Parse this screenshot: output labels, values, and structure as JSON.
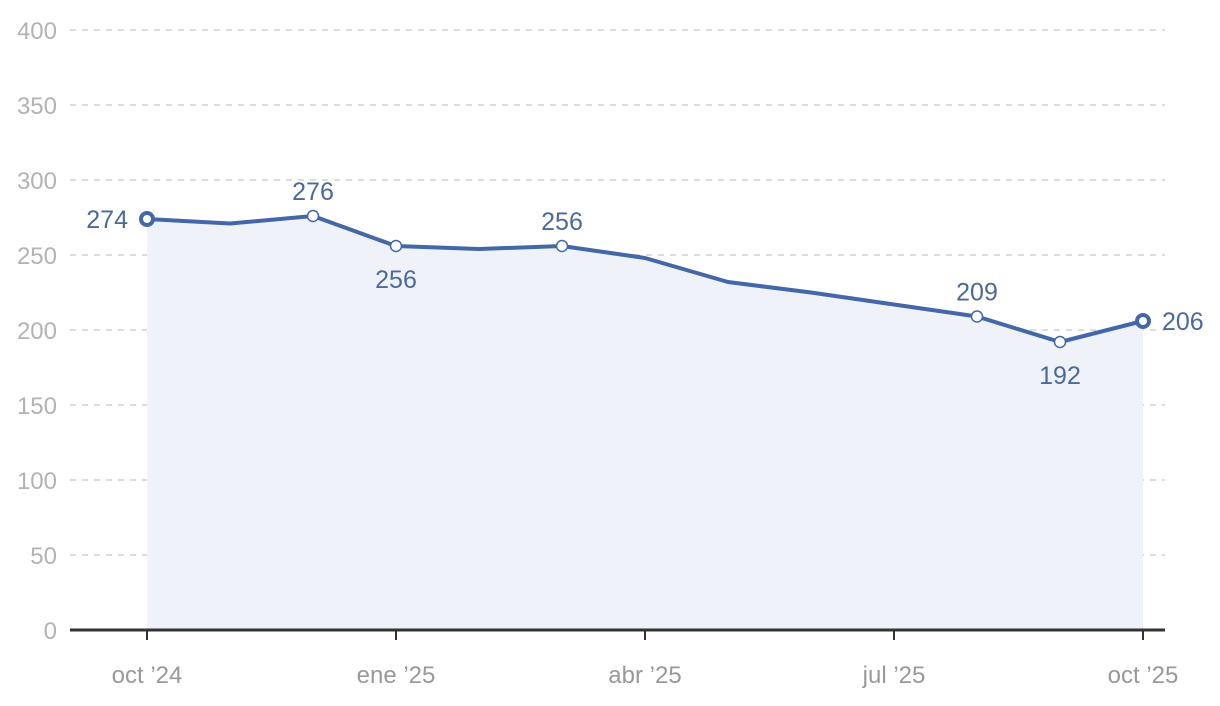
{
  "chart_data": {
    "type": "area",
    "x": [
      "2024-10",
      "2024-11",
      "2024-12",
      "2025-01",
      "2025-02",
      "2025-03",
      "2025-04",
      "2025-05",
      "2025-06",
      "2025-07",
      "2025-08",
      "2025-09",
      "2025-10"
    ],
    "values": [
      274,
      271,
      276,
      256,
      254,
      256,
      248,
      232,
      225,
      217,
      209,
      192,
      206
    ],
    "data_labels": [
      {
        "index": 0,
        "text": "274",
        "position": "left"
      },
      {
        "index": 2,
        "text": "276",
        "position": "above"
      },
      {
        "index": 3,
        "text": "256",
        "position": "below"
      },
      {
        "index": 5,
        "text": "256",
        "position": "above"
      },
      {
        "index": 10,
        "text": "209",
        "position": "above"
      },
      {
        "index": 11,
        "text": "192",
        "position": "below"
      },
      {
        "index": 12,
        "text": "206",
        "position": "right"
      }
    ],
    "x_ticks": [
      {
        "index": 0,
        "label": "oct '24"
      },
      {
        "index": 3,
        "label": "ene '25"
      },
      {
        "index": 6,
        "label": "abr '25"
      },
      {
        "index": 9,
        "label": "jul '25"
      },
      {
        "index": 12,
        "label": "oct '25"
      }
    ],
    "y_ticks": [
      0,
      50,
      100,
      150,
      200,
      250,
      300,
      350,
      400
    ],
    "ylim": [
      0,
      400
    ],
    "title": "",
    "xlabel": "",
    "ylabel": "",
    "grid": true,
    "legend": "none",
    "colors": {
      "line": "#4367a8",
      "area": "#eff3f9",
      "label": "#4a6a9c",
      "axis": "#333333",
      "grid": "#d0d0d0"
    }
  }
}
